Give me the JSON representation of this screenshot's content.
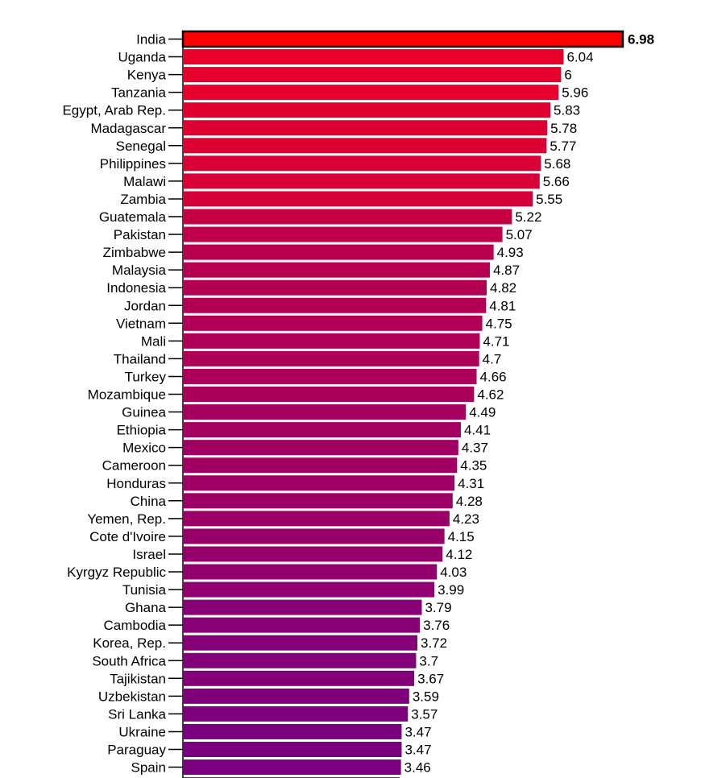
{
  "chart_data": {
    "type": "bar",
    "orientation": "horizontal",
    "categories": [
      "India",
      "Uganda",
      "Kenya",
      "Tanzania",
      "Egypt, Arab Rep.",
      "Madagascar",
      "Senegal",
      "Philippines",
      "Malawi",
      "Zambia",
      "Guatemala",
      "Pakistan",
      "Zimbabwe",
      "Malaysia",
      "Indonesia",
      "Jordan",
      "Vietnam",
      "Mali",
      "Thailand",
      "Turkey",
      "Mozambique",
      "Guinea",
      "Ethiopia",
      "Mexico",
      "Cameroon",
      "Honduras",
      "China",
      "Yemen, Rep.",
      "Cote d'Ivoire",
      "Israel",
      "Kyrgyz Republic",
      "Tunisia",
      "Ghana",
      "Cambodia",
      "Korea, Rep.",
      "South Africa",
      "Tajikistan",
      "Uzbekistan",
      "Sri Lanka",
      "Ukraine",
      "Paraguay",
      "Spain"
    ],
    "values": [
      6.98,
      6.04,
      6,
      5.96,
      5.83,
      5.78,
      5.77,
      5.68,
      5.66,
      5.55,
      5.22,
      5.07,
      4.93,
      4.87,
      4.82,
      4.81,
      4.75,
      4.71,
      4.7,
      4.66,
      4.62,
      4.49,
      4.41,
      4.37,
      4.35,
      4.31,
      4.28,
      4.23,
      4.15,
      4.12,
      4.03,
      3.99,
      3.79,
      3.76,
      3.72,
      3.7,
      3.67,
      3.59,
      3.57,
      3.47,
      3.47,
      3.46
    ],
    "value_labels": [
      "6.98",
      "6.04",
      "6",
      "5.96",
      "5.83",
      "5.78",
      "5.77",
      "5.68",
      "5.66",
      "5.55",
      "5.22",
      "5.07",
      "4.93",
      "4.87",
      "4.82",
      "4.81",
      "4.75",
      "4.71",
      "4.7",
      "4.66",
      "4.62",
      "4.49",
      "4.41",
      "4.37",
      "4.35",
      "4.31",
      "4.28",
      "4.23",
      "4.15",
      "4.12",
      "4.03",
      "3.99",
      "3.79",
      "3.76",
      "3.72",
      "3.7",
      "3.67",
      "3.59",
      "3.57",
      "3.47",
      "3.47",
      "3.46"
    ],
    "highlighted": "India",
    "sorted": "descending",
    "xlim": [
      0,
      6.98
    ],
    "title": "",
    "xlabel": "",
    "ylabel": "",
    "grid": false,
    "legend": "none",
    "colors": {
      "high": "#e8002a",
      "low": "#7a0080",
      "highlight_fill": "#ff0000",
      "highlight_stroke": "#000000"
    }
  }
}
